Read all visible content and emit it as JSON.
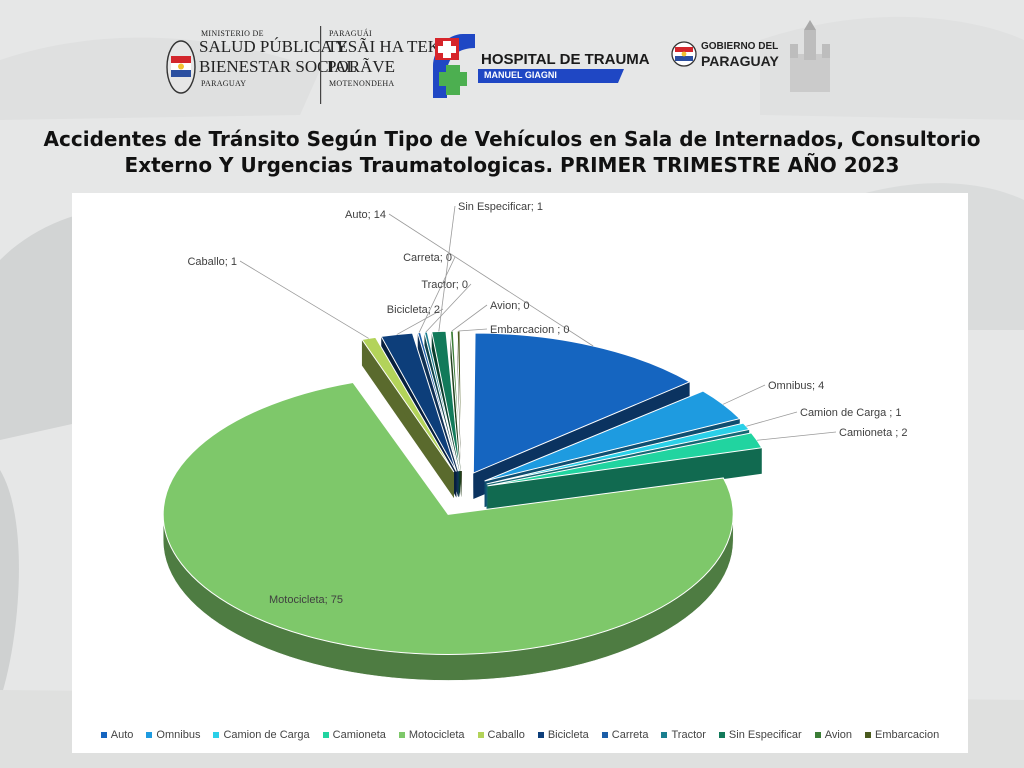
{
  "header": {
    "ministry": {
      "line1": "MINISTERIO DE",
      "line2": "SALUD PÚBLICA Y",
      "line3": "BIENESTAR SOCIAL",
      "line4": "PARAGUAY"
    },
    "guarani": {
      "line1": "PARAGUÁI",
      "line2": "TESÃI HA TEKO",
      "line3": "PORÃVE",
      "line4": "MOTENONDEHA"
    },
    "hospital": {
      "name": "HOSPITAL DE TRAUMA",
      "subtitle": "MANUEL GIAGNI"
    },
    "government": {
      "line1": "GOBIERNO DEL",
      "line2": "PARAGUAY"
    }
  },
  "title": {
    "line1": "Accidentes de Tránsito Según Tipo de Vehículos en Sala de Internados, Consultorio",
    "line2": "Externo Y Urgencias Traumatologicas. PRIMER TRIMESTRE AÑO 2023"
  },
  "chart_data": {
    "type": "pie",
    "style": "3d-exploded",
    "legend_position": "bottom",
    "label_format": "{name}; {value}",
    "series": [
      {
        "name": "Auto",
        "value": 14,
        "color": "#1565c0",
        "label": "Auto; 14"
      },
      {
        "name": "Omnibus",
        "value": 4,
        "color": "#1e9be0",
        "label": "Omnibus; 4"
      },
      {
        "name": "Camion de Carga",
        "value": 1,
        "color": "#2ad0e8",
        "label": "Camion de Carga ; 1"
      },
      {
        "name": "Camioneta",
        "value": 2,
        "color": "#21d4a0",
        "label": "Camioneta ; 2"
      },
      {
        "name": "Motocicleta",
        "value": 75,
        "color": "#7ec86a",
        "label": "Motocicleta; 75"
      },
      {
        "name": "Caballo",
        "value": 1,
        "color": "#b3d35a",
        "label": "Caballo; 1"
      },
      {
        "name": "Bicicleta",
        "value": 2,
        "color": "#0d3e7a",
        "label": "Bicicleta; 2"
      },
      {
        "name": "Carreta",
        "value": 0,
        "color": "#1b5ea8",
        "label": "Carreta; 0"
      },
      {
        "name": "Tractor",
        "value": 0,
        "color": "#1a7f8f",
        "label": "Tractor; 0"
      },
      {
        "name": "Sin Especificar",
        "value": 1,
        "color": "#127a5a",
        "label": "Sin Especificar; 1"
      },
      {
        "name": "Avion",
        "value": 0,
        "color": "#3b7d36",
        "label": "Avion; 0"
      },
      {
        "name": "Embarcacion",
        "value": 0,
        "color": "#4a5a1e",
        "label": "Embarcacion ; 0"
      }
    ]
  }
}
